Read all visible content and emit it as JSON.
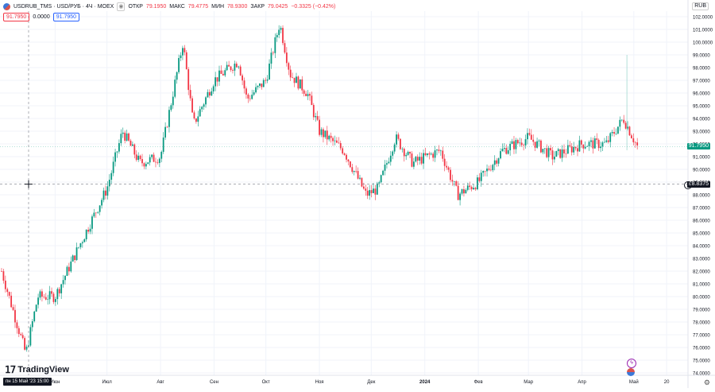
{
  "legend": {
    "symbol": "USDRUB_TMS · USD/РУБ · 4Ч · MOEX",
    "open_label": "ОТКР",
    "open_value": "79.1950",
    "high_label": "МАКС",
    "high_value": "79.4775",
    "low_label": "МИН",
    "low_value": "78.9300",
    "close_label": "ЗАКР",
    "close_value": "79.0425",
    "change": "−0.3325 (−0.42%)"
  },
  "pills": {
    "sell": "91.7950",
    "spread": "0.0000",
    "buy": "91.7950"
  },
  "currency": "RUB",
  "price_axis": [
    "102.0000",
    "101.0000",
    "100.0000",
    "99.0000",
    "98.0000",
    "97.0000",
    "96.0000",
    "95.0000",
    "94.0000",
    "93.0000",
    "92.0000",
    "91.0000",
    "90.0000",
    "89.0000",
    "88.0000",
    "87.0000",
    "86.0000",
    "85.0000",
    "84.0000",
    "83.0000",
    "82.0000",
    "81.0000",
    "80.0000",
    "79.0000",
    "78.0000",
    "77.0000",
    "76.0000",
    "75.0000",
    "74.0000"
  ],
  "time_axis": [
    "Июн",
    "Июл",
    "Авг",
    "Сен",
    "Окт",
    "Ноя",
    "Дек",
    "2024",
    "Фев",
    "Мар",
    "Апр",
    "Май",
    "20"
  ],
  "last_price_label": "91.7950",
  "crosshair_price_label": "88.8375",
  "crosshair_date_label": "пн 15 Май '23  15:00",
  "brand": "TradingView",
  "colors": {
    "up": "#089981",
    "down": "#f23645",
    "grid": "#f0f3fa"
  },
  "chart_data": {
    "type": "line",
    "ylim": [
      74,
      102
    ],
    "x": [
      "2023-05-01",
      "2023-05-15",
      "2023-05-22",
      "2023-06-01",
      "2023-06-15",
      "2023-07-01",
      "2023-07-10",
      "2023-07-20",
      "2023-08-01",
      "2023-08-14",
      "2023-08-20",
      "2023-09-01",
      "2023-09-15",
      "2023-09-20",
      "2023-10-01",
      "2023-10-09",
      "2023-10-15",
      "2023-10-25",
      "2023-11-01",
      "2023-11-15",
      "2023-11-28",
      "2023-12-05",
      "2023-12-15",
      "2023-12-25",
      "2024-01-10",
      "2024-01-20",
      "2024-02-01",
      "2024-02-15",
      "2024-03-01",
      "2024-03-15",
      "2024-04-01",
      "2024-04-15",
      "2024-04-25",
      "2024-05-03"
    ],
    "y": [
      82.0,
      75.5,
      80.0,
      80.0,
      84.0,
      88.5,
      93.0,
      90.5,
      91.0,
      100.0,
      93.5,
      97.0,
      98.5,
      95.5,
      97.0,
      101.5,
      97.5,
      96.0,
      93.0,
      91.5,
      88.0,
      88.5,
      92.5,
      90.5,
      91.5,
      88.0,
      89.0,
      91.5,
      92.5,
      91.0,
      92.0,
      92.0,
      94.0,
      91.8
    ]
  }
}
